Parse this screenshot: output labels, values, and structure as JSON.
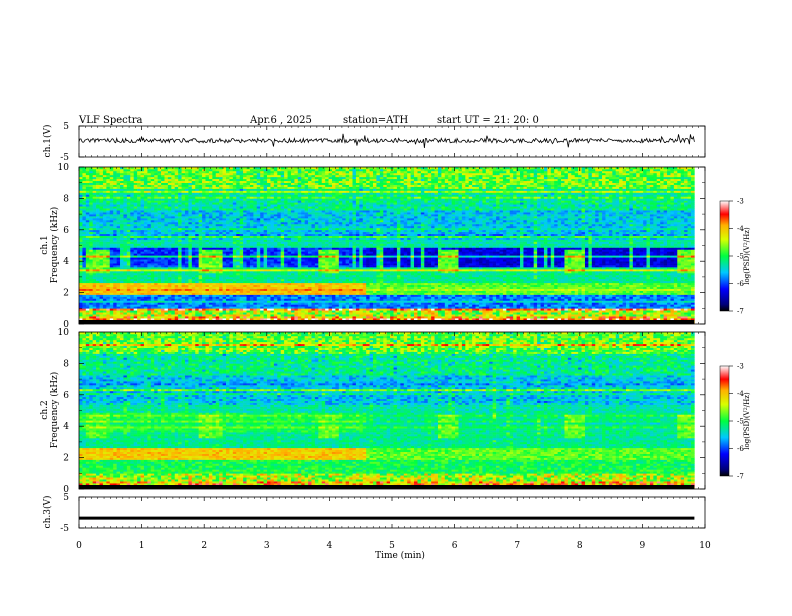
{
  "header": {
    "title": "VLF  Spectra",
    "date": "Apr.6  , 2025",
    "station": "station=ATH",
    "start": "start  UT  =    21: 20: 0"
  },
  "chart_data": [
    {
      "type": "line",
      "panel": "ch1-waveform",
      "ylabel": "ch.1(V)",
      "ylim": [
        -5,
        5
      ],
      "y_tick_labels": [
        "5",
        "-5"
      ],
      "xlim": [
        0,
        10
      ],
      "notes": "noisy waveform centred slightly above 0 V with spikes"
    },
    {
      "type": "heatmap",
      "panel": "ch1-spectrogram",
      "ylabel": "ch.1\nFrequency  (kHz)",
      "ylim": [
        0,
        10
      ],
      "y_tick_labels": [
        "0",
        "2",
        "4",
        "6",
        "8",
        "10"
      ],
      "xlim": [
        0,
        10
      ],
      "data_end_min": 9.83,
      "colorbar": {
        "label": "log(PSD)(V²/Hz)",
        "range": [
          -7,
          -3
        ],
        "tick_labels": [
          "-3",
          "-4",
          "-5",
          "-6",
          "-7"
        ]
      },
      "events": {
        "bursts_4khz_min": [
          0.3,
          2.1,
          4.0,
          5.9,
          7.9,
          9.7
        ],
        "band_shift_min": 4.6
      }
    },
    {
      "type": "heatmap",
      "panel": "ch2-spectrogram",
      "ylabel": "ch.2\nFrequency  (kHz)",
      "ylim": [
        0,
        10
      ],
      "y_tick_labels": [
        "0",
        "2",
        "4",
        "6",
        "8",
        "10"
      ],
      "xlim": [
        0,
        10
      ],
      "data_end_min": 9.83,
      "colorbar": {
        "label": "log(PSD)(V²/Hz)",
        "range": [
          -7,
          -3
        ],
        "tick_labels": [
          "-3",
          "-4",
          "-5",
          "-6",
          "-7"
        ]
      },
      "events": {
        "bursts_4khz_min": [
          0.3,
          2.1,
          4.0,
          5.9,
          7.9,
          9.7
        ],
        "band_shift_min": 4.6
      }
    },
    {
      "type": "line",
      "panel": "ch3-waveform",
      "ylabel": "ch.3(V)",
      "ylim": [
        -5,
        5
      ],
      "y_tick_labels": [
        "5",
        "-5"
      ],
      "xlim": [
        0,
        10
      ],
      "x_tick_labels": [
        "0",
        "1",
        "2",
        "3",
        "4",
        "5",
        "6",
        "7",
        "8",
        "9",
        "10"
      ],
      "xlabel": "Time  (min)",
      "constant_value": -1.8
    }
  ]
}
